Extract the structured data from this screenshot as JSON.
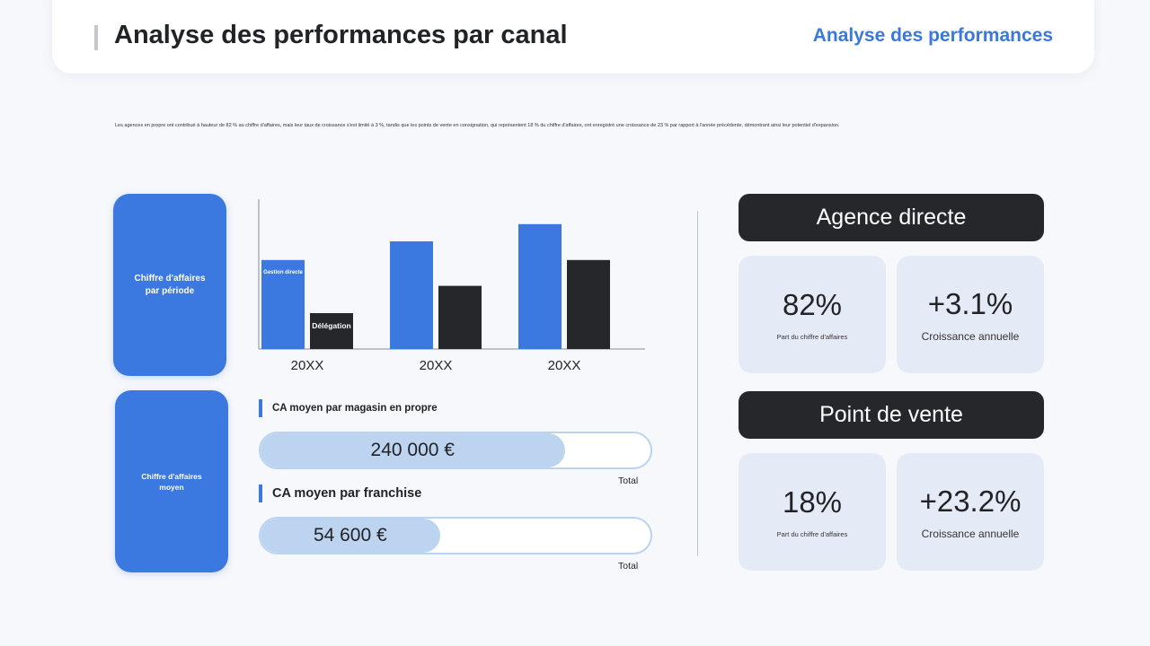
{
  "header": {
    "title": "Analyse des performances par canal",
    "link_label": "Analyse des performances"
  },
  "intro": "Les agences en propre ont contribué à hauteur de 82 % au chiffre d'affaires, mais leur taux de croissance s'est limité à 3 %, tandis que les points de vente en consignation, qui représentent 18 % du chiffre d'affaires, ont enregistré une croissance de 23 % par rapport à l'année précédente, démontrant ainsi leur potentiel d'expansion.",
  "side_cards": {
    "revenue_by_period": "Chiffre d'affaires par période",
    "average_revenue": "Chiffre d'affaires moyen"
  },
  "chart_data": {
    "type": "bar",
    "categories": [
      "20XX",
      "20XX",
      "20XX"
    ],
    "series": [
      {
        "name": "Gestion directe",
        "color": "#3b78e0",
        "values": [
          62,
          75,
          87
        ]
      },
      {
        "name": "Délégation",
        "color": "#26272b",
        "values": [
          25,
          44,
          62
        ]
      }
    ],
    "ylim": [
      0,
      100
    ],
    "xlabel": "",
    "ylabel": "",
    "grid": false
  },
  "kpis": [
    {
      "label": "CA moyen par magasin en propre",
      "value": "240 000 €",
      "fraction": 0.78,
      "total_label": "Total"
    },
    {
      "label": "CA moyen par franchise",
      "value": "54 600 €",
      "fraction": 0.46,
      "total_label": "Total"
    }
  ],
  "sections": [
    {
      "title": "Agence directe",
      "share_value": "82%",
      "share_label": "Part du chiffre d'affaires",
      "growth_value": "+3.1%",
      "growth_label": "Croissance annuelle"
    },
    {
      "title": "Point de vente",
      "share_value": "18%",
      "share_label": "Part du chiffre d'affaires",
      "growth_value": "+23.2%",
      "growth_label": "Croissance annuelle"
    }
  ]
}
